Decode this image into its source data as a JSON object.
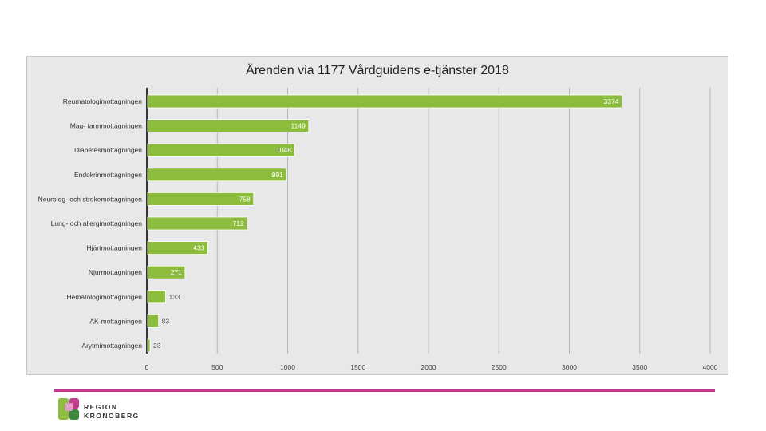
{
  "chart_data": {
    "type": "bar",
    "orientation": "horizontal",
    "title": "Ärenden via 1177 Vårdguidens e-tjänster 2018",
    "categories": [
      "Reumatologimottagningen",
      "Mag- tarmmottagningen",
      "Diabetesmottagningen",
      "Endokrinmottagningen",
      "Neurolog- och strokemottagningen",
      "Lung- och allergimottagningen",
      "Hjärtmottagningen",
      "Njurmottagningen",
      "Hematologimottagningen",
      "AK-mottagningen",
      "Arytmimottagningen"
    ],
    "values": [
      3374,
      1149,
      1048,
      991,
      758,
      712,
      433,
      271,
      133,
      83,
      23
    ],
    "value_labels": [
      "3374",
      "1149",
      "1048",
      "991",
      "758",
      "712",
      "433",
      "271",
      "133",
      "83",
      "23"
    ],
    "xlim": [
      0,
      4000
    ],
    "xticks": [
      "0",
      "500",
      "1000",
      "1500",
      "2000",
      "2500",
      "3000",
      "3500",
      "4000"
    ],
    "grid": true,
    "bar_color": "#8cbc3c"
  },
  "logo": {
    "line1": "REGION",
    "line2": "KRONOBERG",
    "accent_color": "#c2398c"
  }
}
